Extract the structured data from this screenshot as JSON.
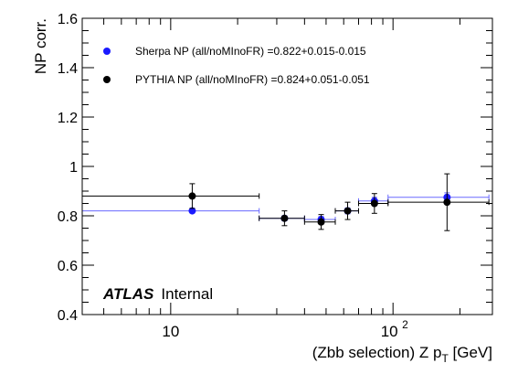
{
  "chart_data": {
    "type": "scatter",
    "xscale": "log",
    "xlim": [
      4,
      280
    ],
    "ylim": [
      0.4,
      1.6
    ],
    "xlabel": "(Zbb selection) Z p",
    "xlabel_sub": "T",
    "xlabel_unit": " [GeV]",
    "ylabel": "NP corr.",
    "x_major_ticks": [
      10,
      100
    ],
    "x_tick_labels": [
      "10",
      "10"
    ],
    "x_tick_label_exp": [
      "",
      "2"
    ],
    "y_ticks": [
      0.4,
      0.6,
      0.8,
      1.0,
      1.2,
      1.4,
      1.6
    ],
    "y_tick_labels": [
      "0.4",
      "0.6",
      "0.8",
      "1",
      "1.2",
      "1.4",
      "1.6"
    ],
    "legend_position": "top-left",
    "annotation_bold": "ATLAS",
    "annotation": "Internal",
    "series": [
      {
        "name": "Sherpa NP (all/noMInoFR) =0.822+0.015-0.015",
        "color": "#1a1aff",
        "line_color": "#6a6aff",
        "points": [
          {
            "x": 12.5,
            "xlo": 4,
            "xhi": 25,
            "y": 0.82,
            "yerr": 0.008
          },
          {
            "x": 32.5,
            "xlo": 25,
            "xhi": 40,
            "y": 0.79,
            "yerr": 0.01
          },
          {
            "x": 47.5,
            "xlo": 40,
            "xhi": 55,
            "y": 0.785,
            "yerr": 0.012
          },
          {
            "x": 62.5,
            "xlo": 55,
            "xhi": 70,
            "y": 0.82,
            "yerr": 0.012
          },
          {
            "x": 82.5,
            "xlo": 70,
            "xhi": 95,
            "y": 0.86,
            "yerr": 0.015
          },
          {
            "x": 175,
            "xlo": 95,
            "xhi": 270,
            "y": 0.875,
            "yerr": 0.018
          }
        ]
      },
      {
        "name": "PYTHIA NP (all/noMInoFR) =0.824+0.051-0.051",
        "color": "#000000",
        "line_color": "#000000",
        "points": [
          {
            "x": 12.5,
            "xlo": 4,
            "xhi": 25,
            "y": 0.88,
            "yerr": 0.05
          },
          {
            "x": 32.5,
            "xlo": 25,
            "xhi": 40,
            "y": 0.79,
            "yerr": 0.03
          },
          {
            "x": 47.5,
            "xlo": 40,
            "xhi": 55,
            "y": 0.775,
            "yerr": 0.03
          },
          {
            "x": 62.5,
            "xlo": 55,
            "xhi": 70,
            "y": 0.82,
            "yerr": 0.035
          },
          {
            "x": 82.5,
            "xlo": 70,
            "xhi": 95,
            "y": 0.85,
            "yerr": 0.04
          },
          {
            "x": 175,
            "xlo": 95,
            "xhi": 270,
            "y": 0.855,
            "yerr": 0.115
          }
        ]
      }
    ]
  }
}
